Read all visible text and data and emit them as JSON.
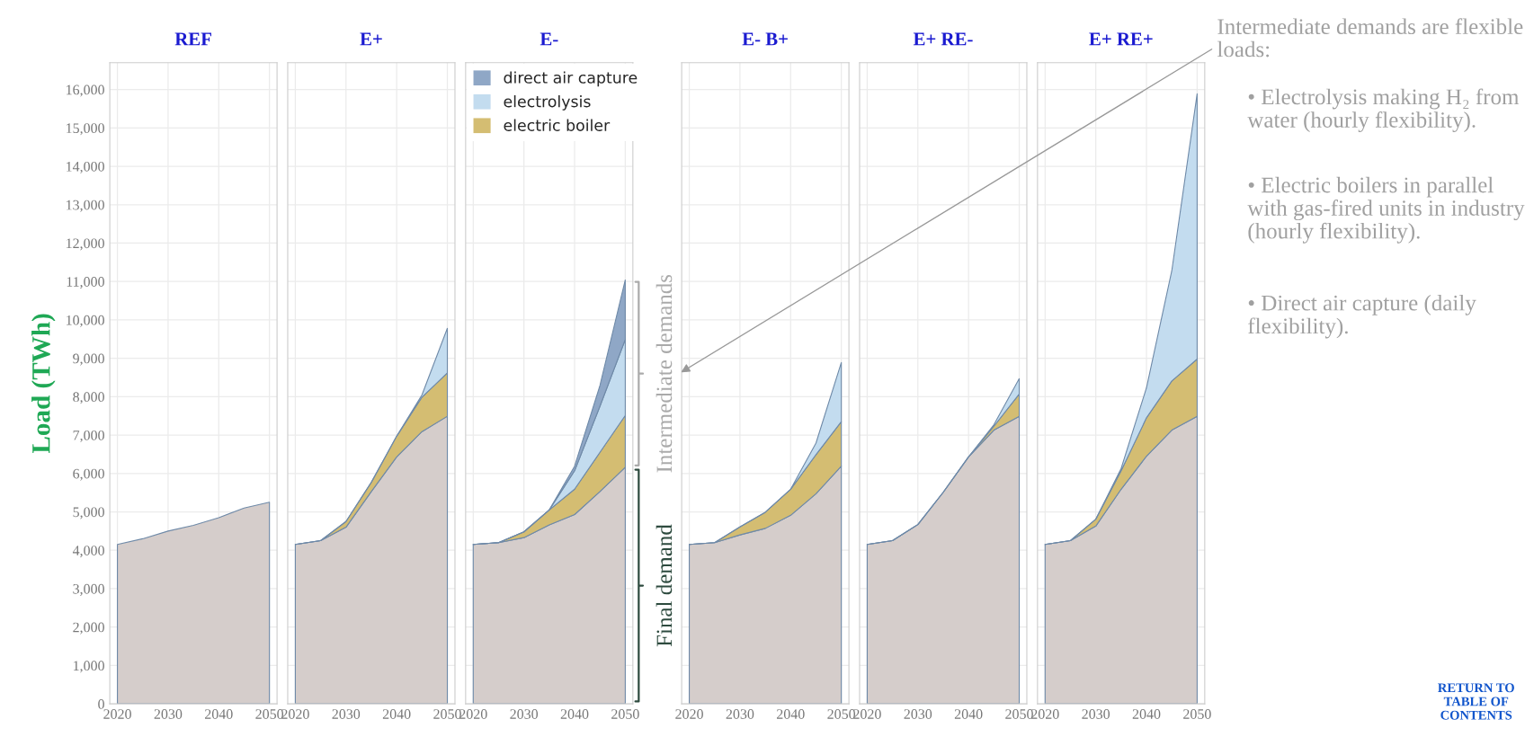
{
  "chart_data": [
    {
      "type": "area",
      "title": "REF",
      "ylabel": "Load (TWh)",
      "stacked": true,
      "grid": true,
      "x": [
        2020,
        2025,
        2030,
        2035,
        2040,
        2045,
        2050
      ],
      "xlim": [
        2018.5,
        2051.5
      ],
      "xticks": [
        2020,
        2030,
        2040,
        2050
      ],
      "ylim": [
        0,
        16700
      ],
      "yticks": [
        {
          "value": 0,
          "label": "0"
        },
        {
          "value": 1000,
          "label": "1,000"
        },
        {
          "value": 2000,
          "label": "2,000"
        },
        {
          "value": 3000,
          "label": "3,000"
        },
        {
          "value": 4000,
          "label": "4,000"
        },
        {
          "value": 5000,
          "label": "5,000"
        },
        {
          "value": 6000,
          "label": "6,000"
        },
        {
          "value": 7000,
          "label": "7,000"
        },
        {
          "value": 8000,
          "label": "8,000"
        },
        {
          "value": 9000,
          "label": "9,000"
        },
        {
          "value": 10000,
          "label": "10,000"
        },
        {
          "value": 11000,
          "label": "11,000"
        },
        {
          "value": 12000,
          "label": "12,000"
        },
        {
          "value": 13000,
          "label": "13,000"
        },
        {
          "value": 14000,
          "label": "14,000"
        },
        {
          "value": 15000,
          "label": "15,000"
        },
        {
          "value": 16000,
          "label": "16,000"
        }
      ],
      "series": [
        {
          "color": "#d5cdcb",
          "values": [
            4150,
            4300,
            4500,
            4650,
            4850,
            5100,
            5250
          ]
        }
      ]
    },
    {
      "type": "area",
      "title": "E+",
      "stacked": true,
      "grid": true,
      "tick_labels": "x",
      "x": [
        2020,
        2025,
        2030,
        2035,
        2040,
        2045,
        2050
      ],
      "xlim": [
        2018.5,
        2051.5
      ],
      "xticks": [
        2020,
        2030,
        2040,
        2050
      ],
      "ylim": [
        0,
        16700
      ],
      "yticks": [
        0,
        1000,
        2000,
        3000,
        4000,
        5000,
        6000,
        7000,
        8000,
        9000,
        10000,
        11000,
        12000,
        13000,
        14000,
        15000,
        16000
      ],
      "series": [
        {
          "color": "#d5cdcb",
          "values": [
            4150,
            4250,
            4600,
            5530,
            6430,
            7090,
            7490
          ]
        },
        {
          "color": "#d4bd72",
          "values": [
            0,
            0,
            150,
            240,
            540,
            900,
            1130
          ]
        },
        {
          "color": "#c3dcef",
          "values": [
            0,
            0,
            0,
            0,
            0,
            60,
            1160
          ]
        }
      ]
    },
    {
      "type": "area",
      "title": "E-",
      "stacked": true,
      "grid": true,
      "legend": "top left",
      "tick_labels": "x",
      "x": [
        2020,
        2025,
        2030,
        2035,
        2040,
        2045,
        2050
      ],
      "xlim": [
        2018.5,
        2051.5
      ],
      "xticks": [
        2020,
        2030,
        2040,
        2050
      ],
      "ylim": [
        0,
        16700
      ],
      "yticks": [
        0,
        1000,
        2000,
        3000,
        4000,
        5000,
        6000,
        7000,
        8000,
        9000,
        10000,
        11000,
        12000,
        13000,
        14000,
        15000,
        16000
      ],
      "annotations": [
        "Intermediate demands",
        "Final demand"
      ],
      "series": [
        {
          "color": "#d5cdcb",
          "values": [
            4150,
            4200,
            4330,
            4660,
            4930,
            5530,
            6160
          ]
        },
        {
          "name": "electric boiler",
          "color": "#d4bd72",
          "values": [
            0,
            0,
            150,
            390,
            660,
            1020,
            1350
          ]
        },
        {
          "name": "electrolysis",
          "color": "#c3dcef",
          "values": [
            0,
            0,
            0,
            0,
            480,
            1200,
            1980
          ]
        },
        {
          "name": "direct air capture",
          "color": "#8fa7c6",
          "values": [
            0,
            0,
            0,
            0,
            120,
            540,
            1550
          ]
        }
      ]
    },
    {
      "type": "area",
      "title": "E- B+",
      "stacked": true,
      "grid": true,
      "tick_labels": "x",
      "x": [
        2020,
        2025,
        2030,
        2035,
        2040,
        2045,
        2050
      ],
      "xlim": [
        2018.5,
        2051.5
      ],
      "xticks": [
        2020,
        2030,
        2040,
        2050
      ],
      "ylim": [
        0,
        16700
      ],
      "yticks": [
        0,
        1000,
        2000,
        3000,
        4000,
        5000,
        6000,
        7000,
        8000,
        9000,
        10000,
        11000,
        12000,
        13000,
        14000,
        15000,
        16000
      ],
      "series": [
        {
          "color": "#d5cdcb",
          "values": [
            4150,
            4200,
            4400,
            4570,
            4910,
            5470,
            6190
          ]
        },
        {
          "color": "#d4bd72",
          "values": [
            0,
            0,
            210,
            420,
            680,
            1020,
            1160
          ]
        },
        {
          "color": "#c3dcef",
          "values": [
            0,
            0,
            0,
            0,
            0,
            300,
            1540
          ]
        }
      ]
    },
    {
      "type": "area",
      "title": "E+ RE-",
      "stacked": true,
      "grid": true,
      "tick_labels": "x",
      "x": [
        2020,
        2025,
        2030,
        2035,
        2040,
        2045,
        2050
      ],
      "xlim": [
        2018.5,
        2051.5
      ],
      "xticks": [
        2020,
        2030,
        2040,
        2050
      ],
      "ylim": [
        0,
        16700
      ],
      "yticks": [
        0,
        1000,
        2000,
        3000,
        4000,
        5000,
        6000,
        7000,
        8000,
        9000,
        10000,
        11000,
        12000,
        13000,
        14000,
        15000,
        16000
      ],
      "series": [
        {
          "color": "#d5cdcb",
          "values": [
            4150,
            4250,
            4670,
            5510,
            6430,
            7130,
            7490
          ]
        },
        {
          "color": "#d4bd72",
          "values": [
            0,
            0,
            0,
            0,
            0,
            100,
            580
          ]
        },
        {
          "color": "#c3dcef",
          "values": [
            0,
            0,
            0,
            0,
            0,
            40,
            400
          ]
        }
      ]
    },
    {
      "type": "area",
      "title": "E+ RE+",
      "stacked": true,
      "grid": true,
      "tick_labels": "x",
      "x": [
        2020,
        2025,
        2030,
        2035,
        2040,
        2045,
        2050
      ],
      "xlim": [
        2018.5,
        2051.5
      ],
      "xticks": [
        2020,
        2030,
        2040,
        2050
      ],
      "ylim": [
        0,
        16700
      ],
      "yticks": [
        0,
        1000,
        2000,
        3000,
        4000,
        5000,
        6000,
        7000,
        8000,
        9000,
        10000,
        11000,
        12000,
        13000,
        14000,
        15000,
        16000
      ],
      "annotations": [
        "Intermediate demands are flexible loads:",
        "• Electrolysis making H₂ from water (hourly flexibility).",
        "• Electric boilers in parallel with gas-fired units in industry (hourly flexibility).",
        "• Direct air capture (daily flexibility).",
        "RETURN TO TABLE OF CONTENTS"
      ],
      "series": [
        {
          "color": "#d5cdcb",
          "values": [
            4150,
            4250,
            4630,
            5590,
            6450,
            7130,
            7490
          ]
        },
        {
          "color": "#d4bd72",
          "values": [
            0,
            0,
            180,
            480,
            1000,
            1280,
            1490
          ]
        },
        {
          "color": "#c3dcef",
          "values": [
            0,
            0,
            0,
            60,
            780,
            2870,
            6910
          ]
        }
      ]
    }
  ]
}
